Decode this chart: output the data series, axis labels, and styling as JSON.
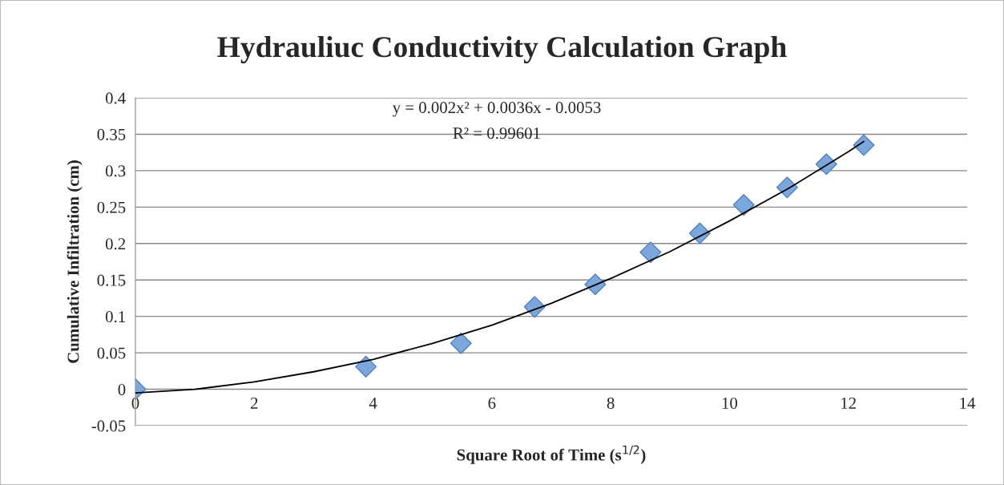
{
  "chart_data": {
    "type": "scatter",
    "title": "Hydrauliuc Conductivity Calculation Graph",
    "xlabel": "Square Root of Time (s$^{1/2}$)",
    "ylabel": "Cumulative Infiltration (cm)",
    "annotations": [
      "y = 0.002x² + 0.0036x - 0.0053",
      "R² = 0.99601"
    ],
    "series": [
      {
        "color": "#7ba7dc",
        "marker": "diamond",
        "x": [
          0,
          3.88,
          5.48,
          6.72,
          7.74,
          8.67,
          9.5,
          10.24,
          10.97,
          11.63,
          12.26
        ],
        "values": [
          0,
          0.031,
          0.063,
          0.113,
          0.144,
          0.188,
          0.214,
          0.253,
          0.277,
          0.309,
          0.335
        ]
      },
      {
        "type": "line",
        "color": "#000000",
        "marker": "none",
        "line_style": "solid",
        "x": [
          0,
          1,
          2,
          3,
          4,
          5,
          6,
          7,
          8,
          9,
          10,
          11,
          12,
          12.26
        ],
        "values": [
          -0.005,
          0.0,
          0.01,
          0.024,
          0.041,
          0.063,
          0.088,
          0.118,
          0.152,
          0.189,
          0.231,
          0.276,
          0.326,
          0.34
        ]
      }
    ],
    "xlim": [
      0,
      14
    ],
    "xticks": [
      0,
      2,
      4,
      6,
      8,
      10,
      12,
      14
    ],
    "ylim": [
      -0.05,
      0.4
    ],
    "yticks": [
      -0.05,
      0,
      0.05,
      0.1,
      0.15,
      0.2,
      0.25,
      0.3,
      0.35,
      0.4
    ],
    "grid": "y",
    "legend": false
  }
}
